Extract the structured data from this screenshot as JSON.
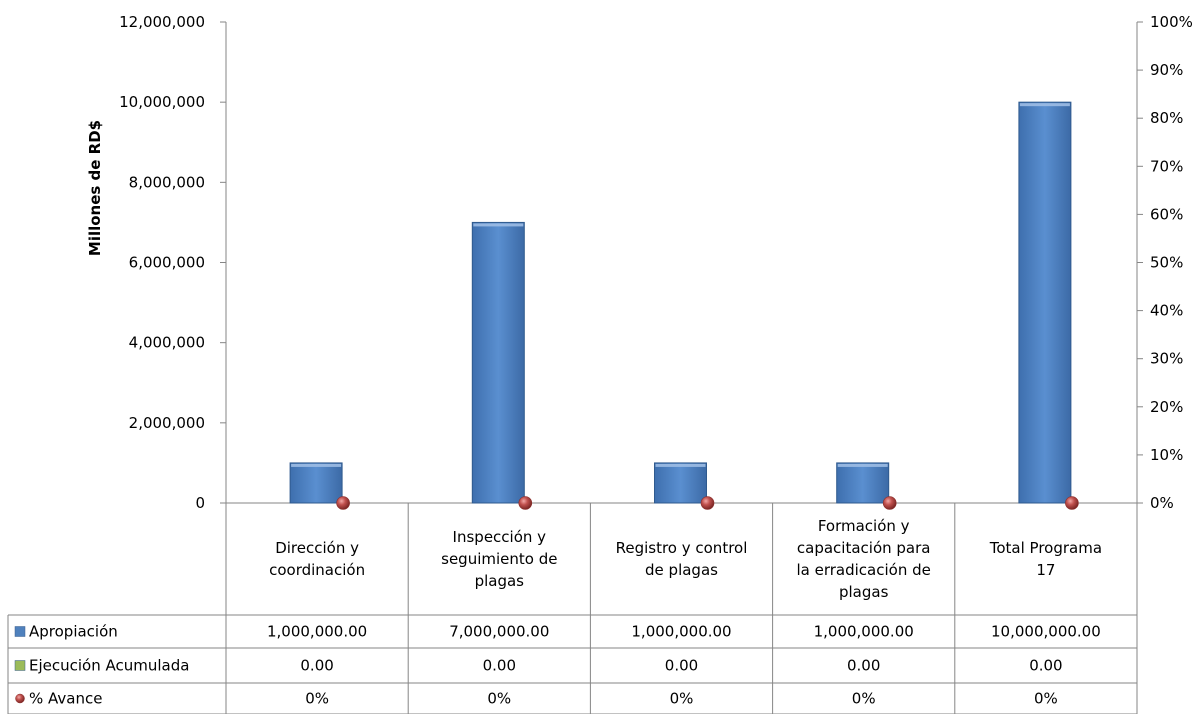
{
  "chart_data": {
    "type": "bar",
    "ylabel": "Millones de RD$",
    "ylim": [
      0,
      12000000
    ],
    "y2lim": [
      0,
      100
    ],
    "yticks": [
      "0",
      "2,000,000",
      "4,000,000",
      "6,000,000",
      "8,000,000",
      "10,000,000",
      "12,000,000"
    ],
    "y2ticks": [
      "0%",
      "10%",
      "20%",
      "30%",
      "40%",
      "50%",
      "60%",
      "70%",
      "80%",
      "90%",
      "100%"
    ],
    "categories": [
      [
        "Dirección y",
        "coordinación"
      ],
      [
        "Inspección y",
        "seguimiento de",
        "plagas"
      ],
      [
        "Registro y control",
        "de plagas"
      ],
      [
        "Formación y",
        "capacitación para",
        "la erradicación de",
        "plagas"
      ],
      [
        "Total Programa",
        "17"
      ]
    ],
    "series": [
      {
        "name": "Apropiación",
        "type": "bar",
        "axis": "left",
        "color": "#4F81BD",
        "values": [
          1000000,
          7000000,
          1000000,
          1000000,
          10000000
        ],
        "labels": [
          "1,000,000.00",
          "7,000,000.00",
          "1,000,000.00",
          "1,000,000.00",
          "10,000,000.00"
        ]
      },
      {
        "name": "Ejecución Acumulada",
        "type": "bar",
        "axis": "left",
        "color": "#9BBB59",
        "values": [
          0,
          0,
          0,
          0,
          0
        ],
        "labels": [
          "0.00",
          "0.00",
          "0.00",
          "0.00",
          "0.00"
        ]
      },
      {
        "name": "% Avance",
        "type": "marker",
        "axis": "right",
        "color": "#C0504D",
        "values": [
          0,
          0,
          0,
          0,
          0
        ],
        "labels": [
          "0%",
          "0%",
          "0%",
          "0%",
          "0%"
        ]
      }
    ]
  }
}
